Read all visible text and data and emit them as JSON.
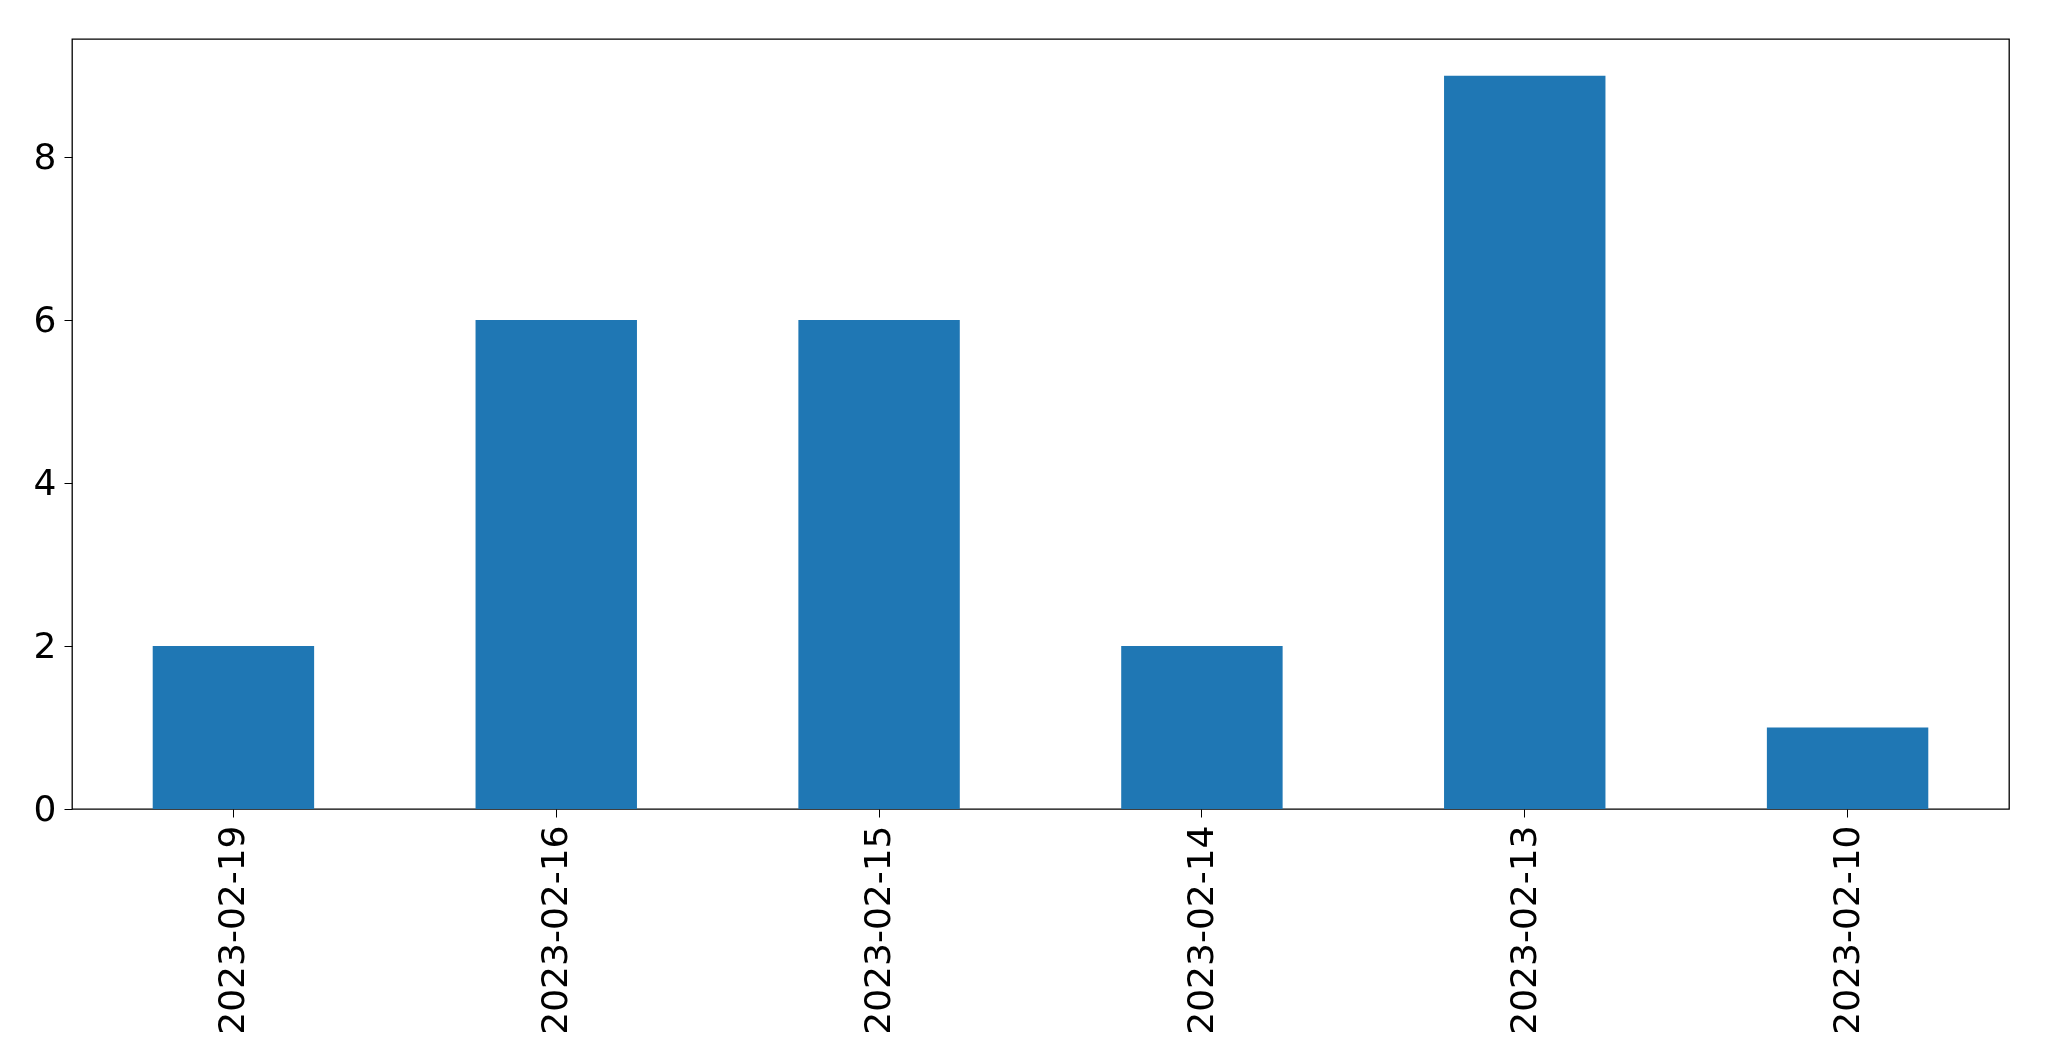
{
  "chart_data": {
    "type": "bar",
    "categories": [
      "2023-02-19",
      "2023-02-16",
      "2023-02-15",
      "2023-02-14",
      "2023-02-13",
      "2023-02-10"
    ],
    "values": [
      2,
      6,
      6,
      2,
      9,
      1
    ],
    "color": "#1f77b4",
    "ylim": [
      0,
      9.45
    ],
    "yticks": [
      0,
      2,
      4,
      6,
      8
    ],
    "grid": false
  }
}
